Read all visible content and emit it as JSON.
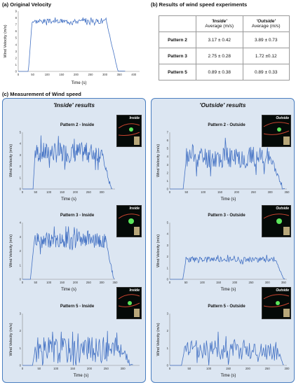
{
  "section_a_title": "(a) Original Velocity",
  "section_b_title": "(b) Results of wind speed experiments",
  "section_c_title": "(c) Measurement of Wind speed",
  "table": {
    "col1_head": "'Inside'",
    "col1_sub": "Average (m/s)",
    "col2_head": "'Outside'",
    "col2_sub": "Average (m/s)",
    "rows": [
      {
        "pattern": "Pattern 2",
        "inside": "3.17 ± 0.42",
        "outside": "3.89 ± 0.73"
      },
      {
        "pattern": "Pattern 3",
        "inside": "2.75 ± 0.28",
        "outside": "1.72 ±0.12"
      },
      {
        "pattern": "Pattern 5",
        "inside": "0.89 ± 0.38",
        "outside": "0.89 ± 0.33"
      }
    ]
  },
  "inside_panel_title": "'Inside' results",
  "outside_panel_title": "'Outside' results",
  "photo_labels": {
    "inside": "Inside",
    "outside": "Outside"
  },
  "colors": {
    "line": "#4472c4",
    "panel_bg": "#dce6f2",
    "panel_border": "#4a7ec0"
  },
  "chart_data": [
    {
      "id": "orig",
      "type": "line",
      "title": "",
      "xlabel": "Time (s)",
      "ylabel": "Wind Velocity (m/s)",
      "xlim": [
        0,
        420
      ],
      "ylim": [
        0,
        9
      ],
      "xticks": [
        0,
        50,
        100,
        150,
        200,
        250,
        300,
        350,
        400
      ],
      "yticks": [
        0,
        1,
        2,
        3,
        4,
        5,
        6,
        7,
        8,
        9
      ],
      "profile": {
        "start": 35,
        "rise_end": 48,
        "plateau": 7.5,
        "noise": 0.35,
        "drop_start": 305,
        "drop_end": 345,
        "tail": 370,
        "seed": 3
      }
    },
    {
      "id": "p2in",
      "type": "line",
      "title": "Pattern 2 - Inside",
      "xlabel": "Time (s)",
      "ylabel": "Wind Velocity (m/s)",
      "xlim": [
        0,
        350
      ],
      "ylim": [
        0,
        5
      ],
      "xticks": [
        0,
        50,
        100,
        150,
        200,
        250,
        300
      ],
      "yticks": [
        0,
        1,
        2,
        3,
        4,
        5
      ],
      "profile": {
        "start": 40,
        "rise_end": 48,
        "plateau": 3.2,
        "noise": 0.9,
        "drop_start": 300,
        "drop_end": 335,
        "tail": 340,
        "seed": 7
      }
    },
    {
      "id": "p2out",
      "type": "line",
      "title": "Pattern 2 - Outside",
      "xlabel": "Time (s)",
      "ylabel": "Wind Velocity (m/s)",
      "xlim": [
        0,
        350
      ],
      "ylim": [
        0,
        7
      ],
      "xticks": [
        0,
        50,
        100,
        150,
        200,
        250,
        300,
        350
      ],
      "yticks": [
        0,
        1,
        2,
        3,
        4,
        5,
        6,
        7
      ],
      "profile": {
        "start": 40,
        "rise_end": 50,
        "plateau": 3.9,
        "noise": 1.4,
        "drop_start": 300,
        "drop_end": 340,
        "tail": 345,
        "seed": 11
      }
    },
    {
      "id": "p3in",
      "type": "line",
      "title": "Pattern 3 - Inside",
      "xlabel": "Time (s)",
      "ylabel": "Wind Velocity (m/s)",
      "xlim": [
        0,
        350
      ],
      "ylim": [
        0,
        4
      ],
      "xticks": [
        0,
        50,
        100,
        150,
        200,
        250,
        300,
        350
      ],
      "yticks": [
        0,
        1,
        2,
        3,
        4
      ],
      "profile": {
        "start": 30,
        "rise_end": 45,
        "plateau": 2.75,
        "noise": 0.55,
        "drop_start": 315,
        "drop_end": 345,
        "tail": 348,
        "seed": 19
      }
    },
    {
      "id": "p3out",
      "type": "line",
      "title": "Pattern 3 - Outside",
      "xlabel": "Time (s)",
      "ylabel": "Wind Velocity (m/s)",
      "xlim": [
        0,
        360
      ],
      "ylim": [
        0,
        5
      ],
      "xticks": [
        0,
        50,
        100,
        150,
        200,
        250,
        300,
        350
      ],
      "yticks": [
        0,
        1,
        2,
        3,
        4,
        5
      ],
      "profile": {
        "start": 40,
        "rise_end": 50,
        "plateau": 1.75,
        "noise": 0.25,
        "drop_start": 325,
        "drop_end": 350,
        "tail": 355,
        "seed": 23
      }
    },
    {
      "id": "p5in",
      "type": "line",
      "title": "Pattern 5 - Inside",
      "xlabel": "Time (s)",
      "ylabel": "Wind Velocity (m/s)",
      "xlim": [
        0,
        350
      ],
      "ylim": [
        0,
        3
      ],
      "xticks": [
        0,
        50,
        100,
        150,
        200,
        250,
        300
      ],
      "yticks": [
        0,
        1,
        2,
        3
      ],
      "profile": {
        "start": 30,
        "rise_end": 38,
        "plateau": 0.9,
        "noise": 0.75,
        "drop_start": 300,
        "drop_end": 325,
        "tail": 330,
        "seed": 31
      }
    },
    {
      "id": "p5out",
      "type": "line",
      "title": "Pattern 5 - Outside",
      "xlabel": "Time (s)",
      "ylabel": "Wind Velocity (m/s)",
      "xlim": [
        0,
        300
      ],
      "ylim": [
        0,
        3
      ],
      "xticks": [
        0,
        50,
        100,
        150,
        200,
        250,
        300
      ],
      "yticks": [
        0,
        1,
        2,
        3
      ],
      "profile": {
        "start": 30,
        "rise_end": 38,
        "plateau": 0.9,
        "noise": 0.6,
        "drop_start": 275,
        "drop_end": 290,
        "tail": 292,
        "seed": 37
      }
    }
  ]
}
